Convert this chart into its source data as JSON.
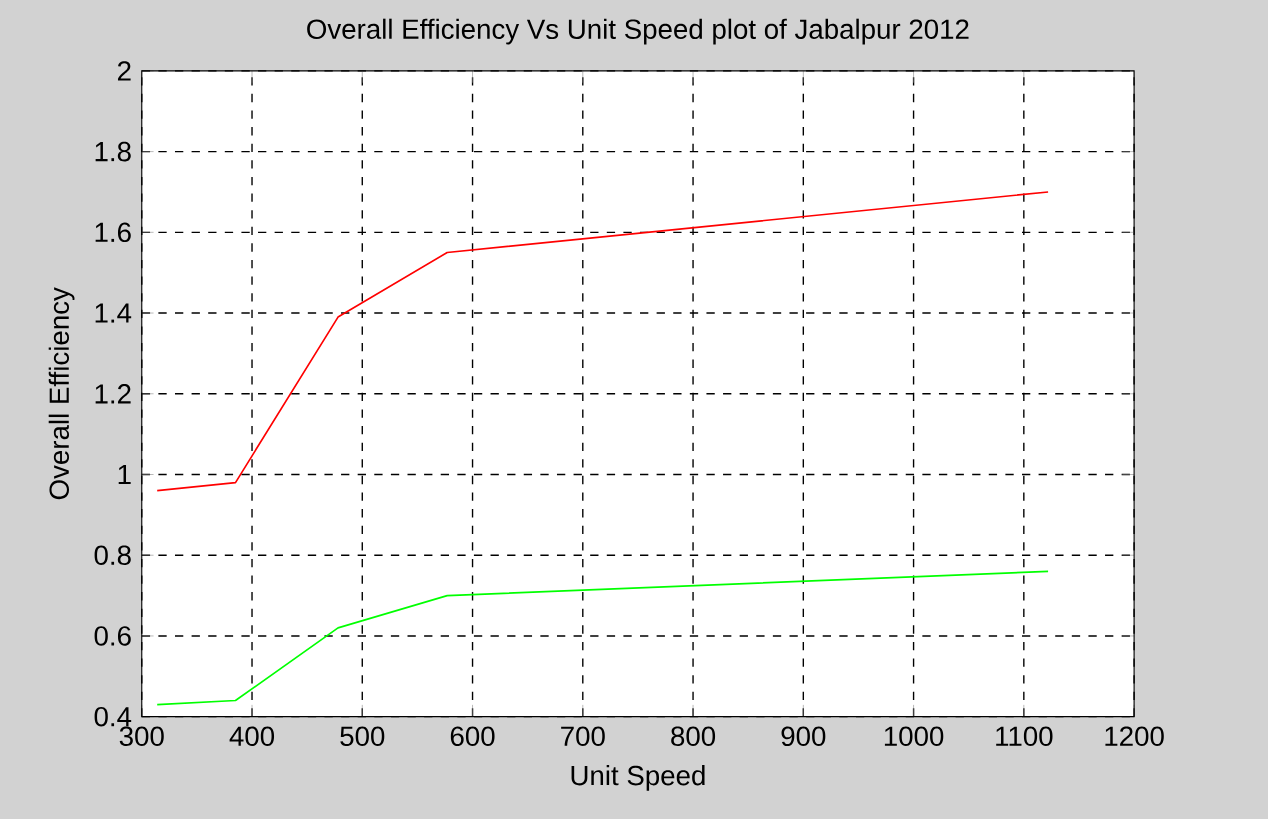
{
  "chart_data": {
    "type": "line",
    "title": "Overall Efficiency Vs Unit Speed plot of Jabalpur 2012",
    "xlabel": "Unit Speed",
    "ylabel": "Overall Efficiency",
    "x": [
      314,
      385,
      478,
      577,
      1122
    ],
    "series": [
      {
        "color": "#ff0000",
        "values": [
          0.96,
          0.98,
          1.39,
          1.55,
          1.7
        ]
      },
      {
        "color": "#00ff00",
        "values": [
          0.43,
          0.44,
          0.62,
          0.7,
          0.76
        ]
      }
    ],
    "xlim": [
      300,
      1200
    ],
    "xticks": [
      300,
      400,
      500,
      600,
      700,
      800,
      900,
      1000,
      1100,
      1200
    ],
    "ylim": [
      0.4,
      2
    ],
    "yticks": [
      0.4,
      0.6,
      0.8,
      1,
      1.2,
      1.4,
      1.6,
      1.8,
      2
    ],
    "grid": true
  }
}
